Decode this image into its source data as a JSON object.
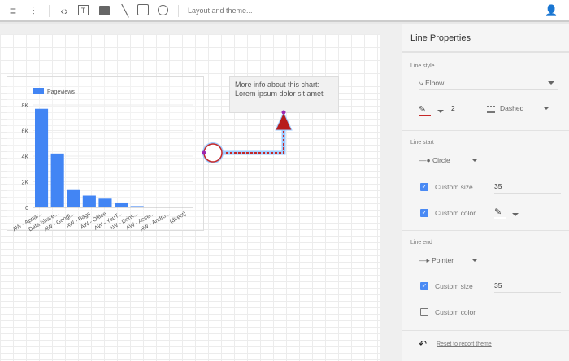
{
  "toolbar": {
    "icons": [
      "filter-icon",
      "data-control-icon",
      "embed-code-icon",
      "text-icon",
      "image-icon",
      "line-icon",
      "rectangle-icon",
      "circle-icon",
      "add-person-icon"
    ],
    "layout_theme": "Layout and theme..."
  },
  "chart_data": {
    "type": "bar",
    "legend": "Pageviews",
    "legend_placement": "top-left",
    "categories": [
      "AW - Appar...",
      "Data Share...",
      "AW - Googl...",
      "AW - Bags",
      "AW - Office",
      "AW - YouT...",
      "AW - Drink...",
      "AW - Acce...",
      "AW - Andro...",
      "(direct)"
    ],
    "values": [
      7700,
      4200,
      1350,
      920,
      680,
      320,
      100,
      40,
      30,
      10
    ],
    "yticks": [
      "0",
      "2K",
      "4K",
      "6K",
      "8K"
    ],
    "ylim": [
      0,
      8000
    ],
    "grid": true,
    "color": "#4285f4"
  },
  "note": {
    "line1": "More info about this chart:",
    "line2": "Lorem ipsum dolor sit amet"
  },
  "panel": {
    "title": "Line Properties",
    "line_style": {
      "label": "Line style",
      "type": "Elbow",
      "weight": "2",
      "dash": "Dashed",
      "color": "#c62828"
    },
    "line_start": {
      "label": "Line start",
      "shape": "Circle",
      "custom_size_label": "Custom size",
      "custom_size_checked": true,
      "size": "35",
      "custom_color_label": "Custom color",
      "custom_color_checked": true
    },
    "line_end": {
      "label": "Line end",
      "shape": "Pointer",
      "custom_size_label": "Custom size",
      "custom_size_checked": true,
      "size": "35",
      "custom_color_label": "Custom color",
      "custom_color_checked": false
    },
    "reset": "Reset to report theme"
  }
}
